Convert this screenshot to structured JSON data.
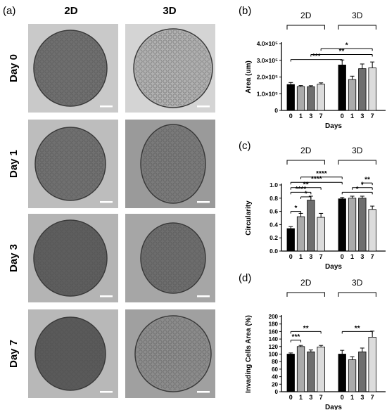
{
  "panel_a": {
    "label": "(a)",
    "columns": [
      "2D",
      "3D"
    ],
    "rows": [
      "Day 0",
      "Day 1",
      "Day 3",
      "Day 7"
    ]
  },
  "chart_data": [
    {
      "panel": "(b)",
      "type": "bar",
      "ylabel": "Area (um)",
      "xlabel": "Days",
      "group_labels": [
        "2D",
        "3D"
      ],
      "categories": [
        "0",
        "1",
        "3",
        "7"
      ],
      "yticks": [
        "0",
        "1.0×10⁵",
        "2.0×10⁵",
        "3.0×10⁵",
        "4.0×10⁵"
      ],
      "ylim": [
        0,
        400000
      ],
      "series": [
        {
          "values": [
            155000,
            143000,
            142000,
            157000
          ],
          "errors": [
            12000,
            6000,
            6000,
            8000
          ]
        },
        {
          "values": [
            272000,
            185000,
            250000,
            255000
          ],
          "errors": [
            30000,
            20000,
            28000,
            35000
          ]
        }
      ],
      "colors": [
        "#000000",
        "#ababab",
        "#6e6e6e",
        "#dcdcdc"
      ],
      "significance": [
        {
          "label": "*",
          "from": [
            0,
            3
          ],
          "to": [
            1,
            3
          ],
          "y": 370000
        },
        {
          "label": "**",
          "from": [
            0,
            2
          ],
          "to": [
            1,
            3
          ],
          "y": 335000
        },
        {
          "label": "***",
          "from": [
            0,
            0
          ],
          "to": [
            1,
            0
          ],
          "y": 305000
        }
      ]
    },
    {
      "panel": "(c)",
      "type": "bar",
      "ylabel": "Circularity",
      "xlabel": "Days",
      "group_labels": [
        "2D",
        "3D"
      ],
      "categories": [
        "0",
        "1",
        "3",
        "7"
      ],
      "yticks": [
        "0.0",
        "0.2",
        "0.4",
        "0.6",
        "0.8",
        "1.0"
      ],
      "ylim": [
        0,
        1.0
      ],
      "series": [
        {
          "values": [
            0.34,
            0.52,
            0.77,
            0.51
          ],
          "errors": [
            0.03,
            0.05,
            0.06,
            0.06
          ]
        },
        {
          "values": [
            0.79,
            0.8,
            0.8,
            0.63
          ],
          "errors": [
            0.02,
            0.03,
            0.03,
            0.05
          ]
        }
      ],
      "colors": [
        "#000000",
        "#ababab",
        "#6e6e6e",
        "#dcdcdc"
      ],
      "significance": [
        {
          "label": "****",
          "from": [
            0,
            1
          ],
          "to": [
            1,
            0
          ],
          "y": 1.12
        },
        {
          "label": "****",
          "from": [
            0,
            0
          ],
          "to": [
            1,
            0
          ],
          "y": 1.04
        },
        {
          "label": "**",
          "from": [
            0,
            0
          ],
          "to": [
            0,
            3
          ],
          "y": 0.96
        },
        {
          "label": "****",
          "from": [
            0,
            0
          ],
          "to": [
            0,
            2
          ],
          "y": 0.89
        },
        {
          "label": "*",
          "from": [
            0,
            1
          ],
          "to": [
            0,
            2
          ],
          "y": 0.82
        },
        {
          "label": "*",
          "from": [
            0,
            0
          ],
          "to": [
            0,
            1
          ],
          "y": 0.6
        },
        {
          "label": "**",
          "from": [
            1,
            2
          ],
          "to": [
            1,
            3
          ],
          "y": 1.03
        },
        {
          "label": "*",
          "from": [
            1,
            1
          ],
          "to": [
            1,
            3
          ],
          "y": 0.96
        },
        {
          "label": "*",
          "from": [
            1,
            0
          ],
          "to": [
            1,
            3
          ],
          "y": 0.89
        }
      ]
    },
    {
      "panel": "(d)",
      "type": "bar",
      "ylabel": "Invading Cells Area (%)",
      "xlabel": "Days",
      "group_labels": [
        "2D",
        "3D"
      ],
      "categories": [
        "0",
        "1",
        "3",
        "7"
      ],
      "yticks": [
        "0",
        "20",
        "40",
        "60",
        "80",
        "100",
        "120",
        "140",
        "160",
        "180",
        "200"
      ],
      "ylim": [
        0,
        200
      ],
      "series": [
        {
          "values": [
            100,
            120,
            106,
            119
          ],
          "errors": [
            3,
            3,
            5,
            4
          ]
        },
        {
          "values": [
            100,
            85,
            106,
            145
          ],
          "errors": [
            10,
            8,
            10,
            16
          ]
        }
      ],
      "colors": [
        "#000000",
        "#ababab",
        "#6e6e6e",
        "#dcdcdc"
      ],
      "significance": [
        {
          "label": "**",
          "from": [
            0,
            0
          ],
          "to": [
            0,
            3
          ],
          "y": 160
        },
        {
          "label": "***",
          "from": [
            0,
            0
          ],
          "to": [
            0,
            1
          ],
          "y": 137
        },
        {
          "label": "**",
          "from": [
            1,
            0
          ],
          "to": [
            1,
            3
          ],
          "y": 160
        }
      ]
    }
  ]
}
